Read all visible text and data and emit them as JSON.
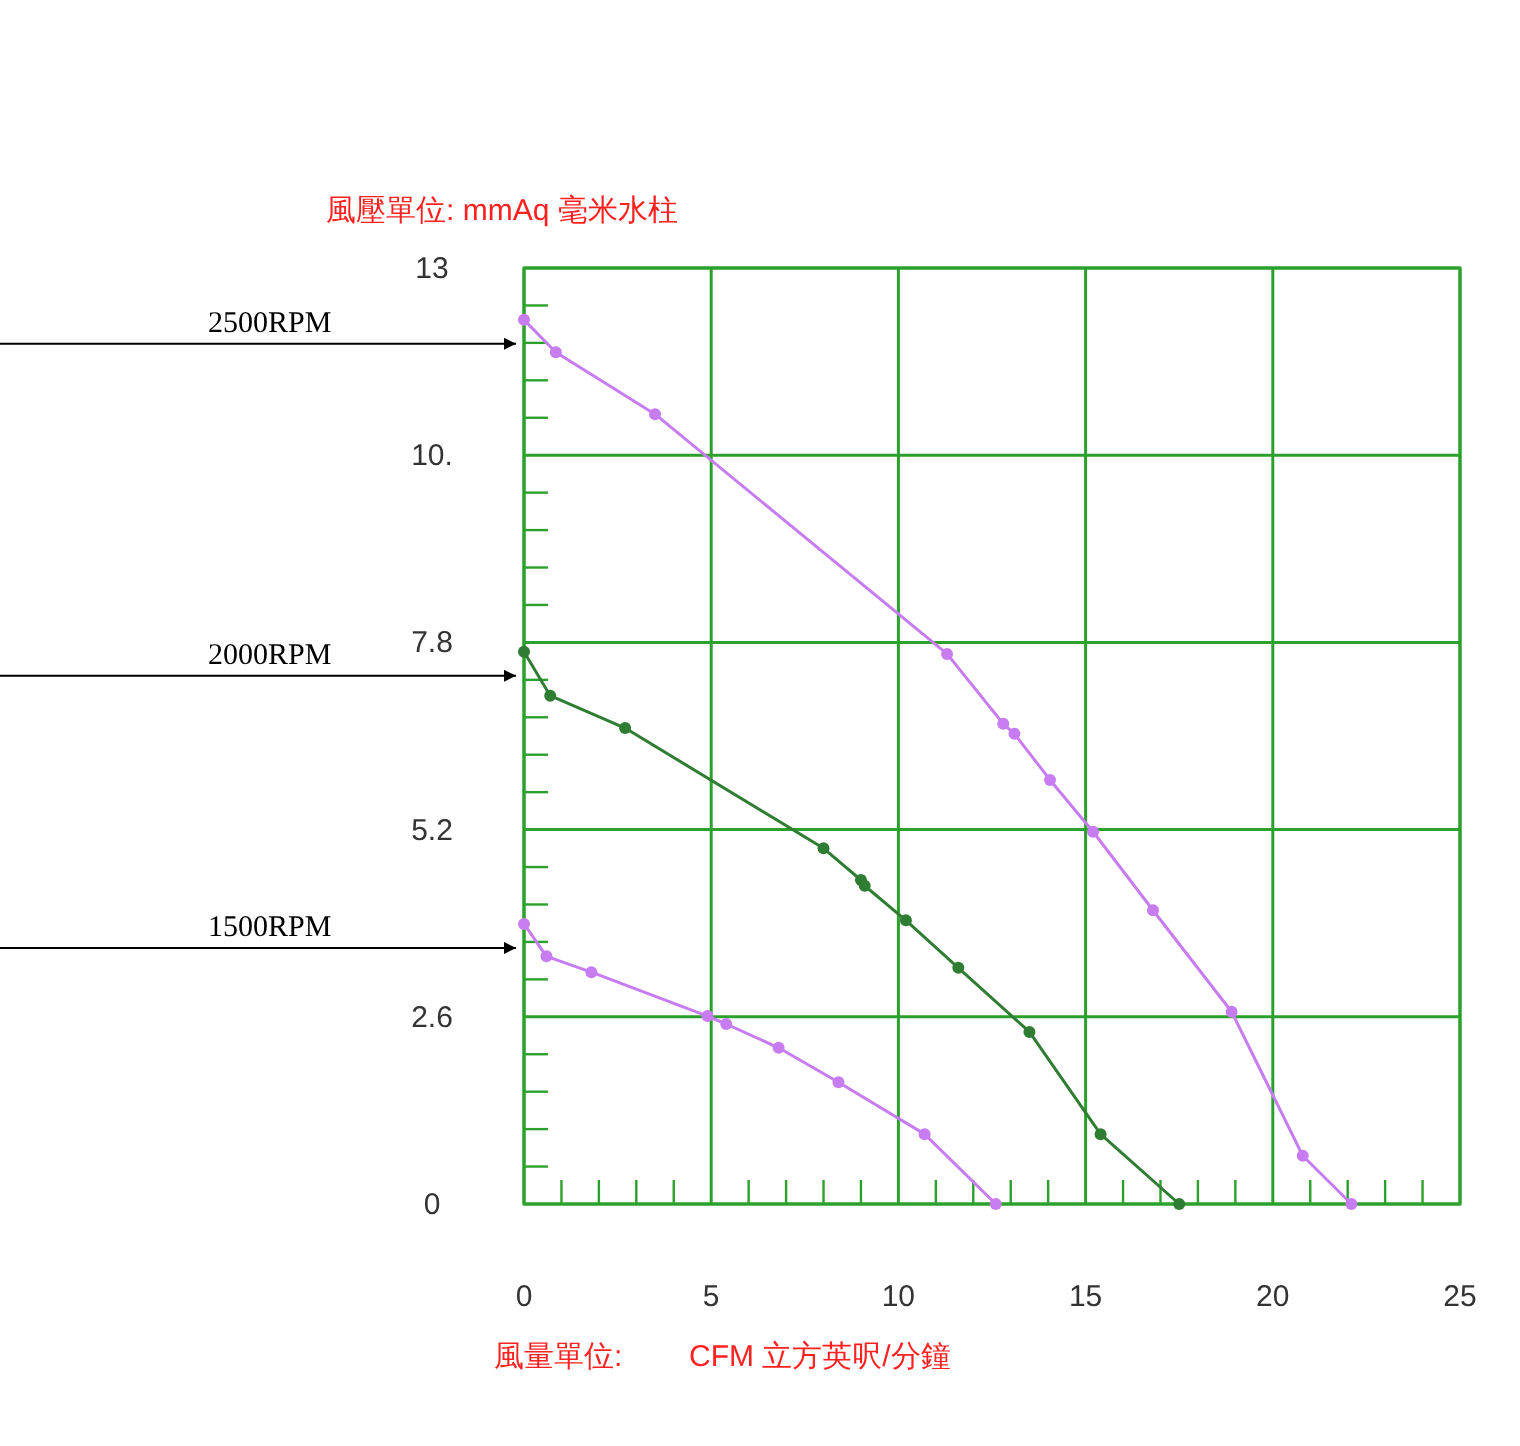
{
  "chart_data": {
    "type": "line",
    "xlabel": "風量單位:        CFM 立方英呎/分鐘",
    "ylabel": "風壓單位:  mmAq 毫米水柱",
    "xlim": [
      0,
      25
    ],
    "xticks": [
      0,
      5,
      10,
      15,
      20,
      25
    ],
    "ylim": [
      0,
      13
    ],
    "yticks": [
      0,
      2.6,
      5.2,
      7.8,
      {
        "value": 10.4,
        "label": "10."
      },
      13
    ],
    "annotations": [
      "2500RPM",
      "2000RPM",
      "1500RPM"
    ],
    "grid": true,
    "marker": "circle",
    "line_style": "solid",
    "series": [
      {
        "color": "#c77cf2",
        "x": [
          0,
          0.85,
          3.5,
          11.3,
          12.8,
          13.1,
          14.05,
          15.2,
          16.8,
          18.9,
          20.8,
          22.1
        ],
        "values": [
          12.28,
          11.83,
          10.97,
          7.64,
          6.67,
          6.53,
          5.89,
          5.17,
          4.08,
          2.67,
          0.67,
          0
        ]
      },
      {
        "color": "#2e7d32",
        "x": [
          0,
          0.7,
          2.7,
          8.0,
          9.0,
          9.1,
          10.2,
          11.6,
          13.5,
          15.4,
          17.5
        ],
        "values": [
          7.67,
          7.06,
          6.61,
          4.94,
          4.5,
          4.42,
          3.94,
          3.28,
          2.39,
          0.97,
          0
        ]
      },
      {
        "color": "#c77cf2",
        "x": [
          0,
          0.6,
          1.8,
          4.9,
          5.4,
          6.8,
          8.4,
          10.7,
          12.6
        ],
        "values": [
          3.89,
          3.44,
          3.22,
          2.61,
          2.5,
          2.17,
          1.69,
          0.97,
          0
        ]
      }
    ]
  }
}
